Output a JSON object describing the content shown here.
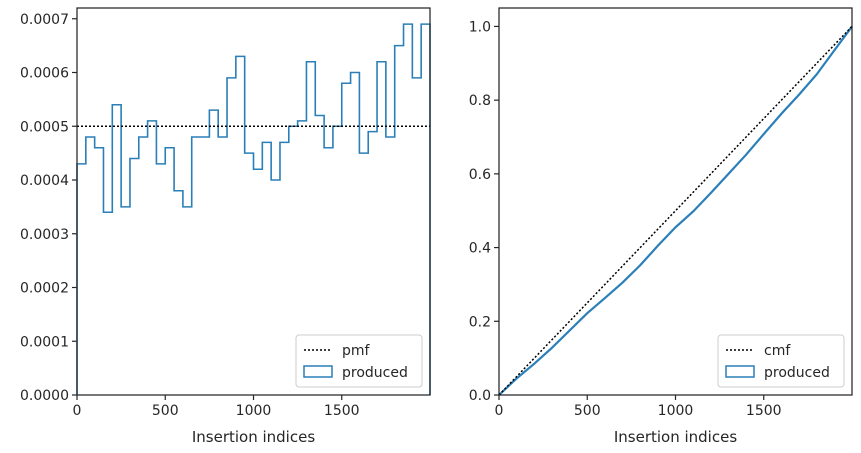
{
  "chart_data": [
    {
      "type": "histogram-step",
      "xlabel": "Insertion indices",
      "ylabel": "",
      "xlim": [
        0,
        2000
      ],
      "ylim": [
        0,
        0.00072
      ],
      "x_ticks": [
        0,
        500,
        1000,
        1500
      ],
      "x_tick_labels": [
        "0",
        "500",
        "1000",
        "1500"
      ],
      "y_ticks": [
        0,
        0.0001,
        0.0002,
        0.0003,
        0.0004,
        0.0005,
        0.0006,
        0.0007
      ],
      "y_tick_labels": [
        "0.0000",
        "0.0001",
        "0.0002",
        "0.0003",
        "0.0004",
        "0.0005",
        "0.0006",
        "0.0007"
      ],
      "legend_position": "lower-right",
      "reference_line": {
        "name": "pmf",
        "style": "dotted",
        "color": "#000000",
        "value": 0.0005
      },
      "bin_width": 50,
      "series": [
        {
          "name": "produced",
          "color": "#2a7fb8",
          "values": [
            0.00043,
            0.00048,
            0.00046,
            0.00034,
            0.00054,
            0.00035,
            0.00044,
            0.00048,
            0.00051,
            0.00043,
            0.00046,
            0.00038,
            0.00035,
            0.00048,
            0.00048,
            0.00053,
            0.00048,
            0.00059,
            0.00063,
            0.00045,
            0.00042,
            0.00047,
            0.0004,
            0.00047,
            0.0005,
            0.00051,
            0.00062,
            0.00052,
            0.00046,
            0.0005,
            0.00058,
            0.0006,
            0.00045,
            0.00049,
            0.00062,
            0.00048,
            0.00065,
            0.00069,
            0.00059,
            0.00069
          ]
        }
      ]
    },
    {
      "type": "line",
      "xlabel": "Insertion indices",
      "ylabel": "",
      "xlim": [
        0,
        2000
      ],
      "ylim": [
        0,
        1.05
      ],
      "x_ticks": [
        0,
        500,
        1000,
        1500
      ],
      "x_tick_labels": [
        "0",
        "500",
        "1000",
        "1500"
      ],
      "y_ticks": [
        0,
        0.2,
        0.4,
        0.6,
        0.8,
        1.0
      ],
      "y_tick_labels": [
        "0.0",
        "0.2",
        "0.4",
        "0.6",
        "0.8",
        "1.0"
      ],
      "legend_position": "lower-right",
      "reference_line": {
        "name": "cmf",
        "style": "dotted",
        "color": "#000000",
        "x": [
          0,
          2000
        ],
        "y": [
          0,
          1
        ]
      },
      "series": [
        {
          "name": "produced",
          "color": "#2a7fb8",
          "x": [
            0,
            100,
            200,
            300,
            400,
            500,
            600,
            700,
            800,
            900,
            1000,
            1100,
            1200,
            1300,
            1400,
            1500,
            1600,
            1700,
            1800,
            1900,
            2000
          ],
          "y": [
            0,
            0.045,
            0.085,
            0.128,
            0.175,
            0.222,
            0.263,
            0.305,
            0.352,
            0.405,
            0.455,
            0.498,
            0.548,
            0.6,
            0.652,
            0.708,
            0.763,
            0.815,
            0.87,
            0.935,
            1.0
          ]
        }
      ]
    }
  ]
}
